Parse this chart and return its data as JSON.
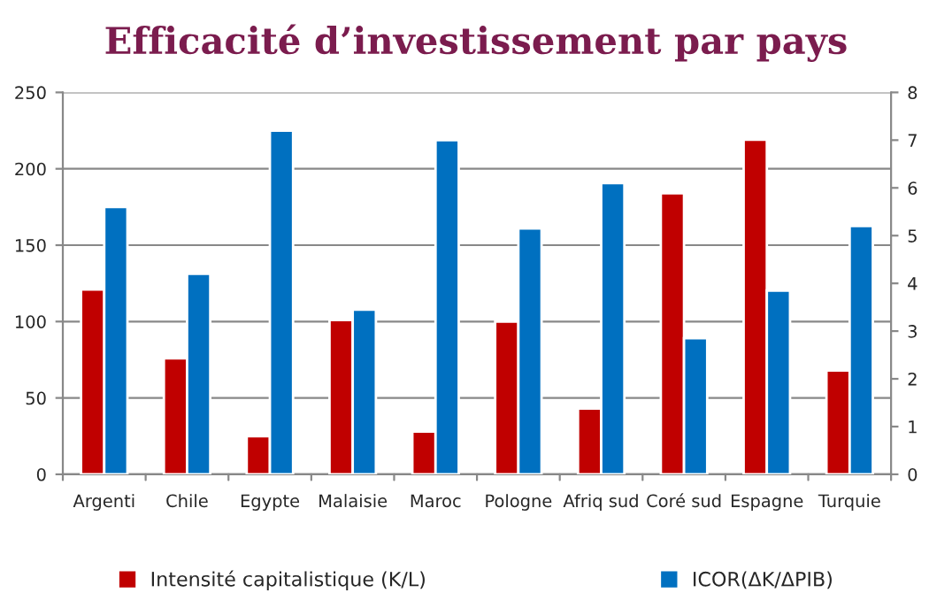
{
  "chart_data": {
    "type": "bar",
    "title": "Efficacité d’investissement par pays",
    "categories": [
      "Argenti",
      "Chile",
      "Egypte",
      "Malaisie",
      "Maroc",
      "Pologne",
      "Afriq sud",
      "Coré sud",
      "Espagne",
      "Turquie"
    ],
    "series": [
      {
        "name": "Intensité capitalistique (K/L)",
        "color": "#c00000",
        "values": [
          121,
          76,
          25,
          101,
          28,
          100,
          43,
          184,
          219,
          68
        ]
      },
      {
        "name": "ICOR(ΔK/ΔPIB)",
        "color": "#0070c0",
        "axis": "y2",
        "values": [
          5.6,
          4.2,
          7.2,
          3.45,
          7.0,
          5.15,
          6.1,
          2.85,
          3.85,
          5.2
        ]
      }
    ],
    "ylim": [
      0,
      250
    ],
    "yticks": [
      0,
      50,
      100,
      150,
      200,
      250
    ],
    "y2lim": [
      0,
      8
    ],
    "y2ticks": [
      0,
      1,
      2,
      3,
      4,
      5,
      6,
      7,
      8
    ],
    "grid": "y",
    "legend": "bottom"
  }
}
